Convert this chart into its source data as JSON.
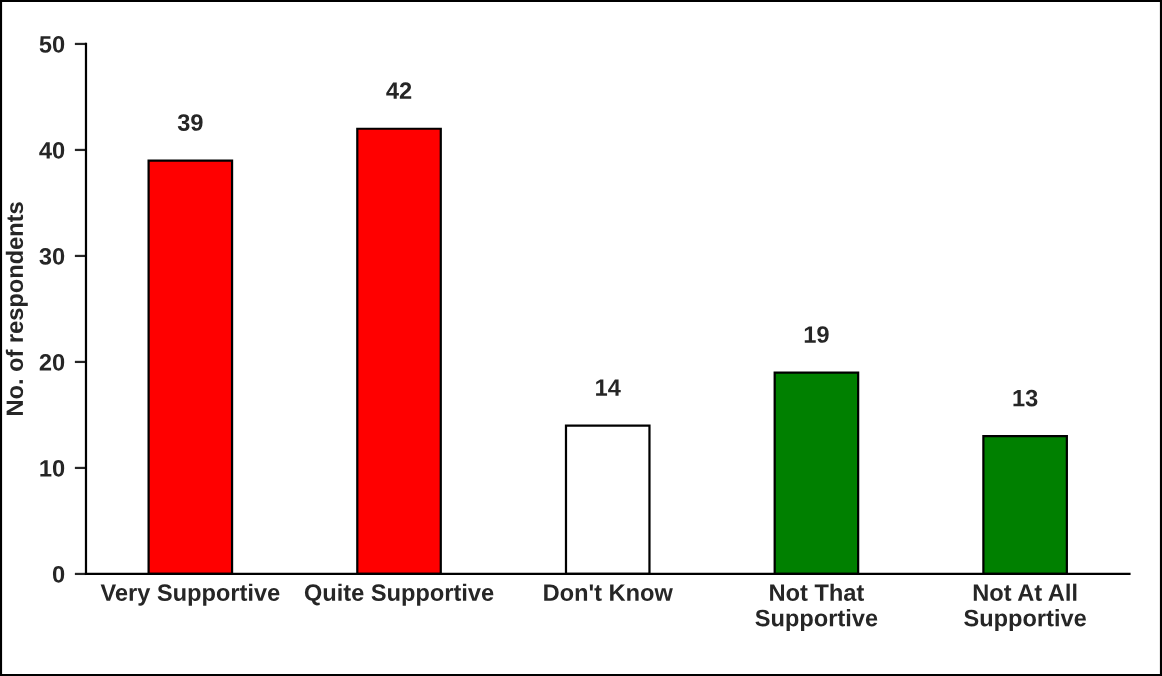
{
  "chart_data": {
    "type": "bar",
    "ylabel": "No. of respondents",
    "categories": [
      "Very Supportive",
      "Quite Supportive",
      "Don't Know",
      "Not That\nSupportive",
      "Not At All\nSupportive"
    ],
    "values": [
      39,
      42,
      14,
      19,
      13
    ],
    "colors": [
      "#ff0000",
      "#ff0000",
      "#ffffff",
      "#008000",
      "#008000"
    ],
    "ylim": [
      0,
      50
    ],
    "yticks": [
      0,
      10,
      20,
      30,
      40,
      50
    ],
    "grid": false,
    "legend": false,
    "data_labels": true
  }
}
